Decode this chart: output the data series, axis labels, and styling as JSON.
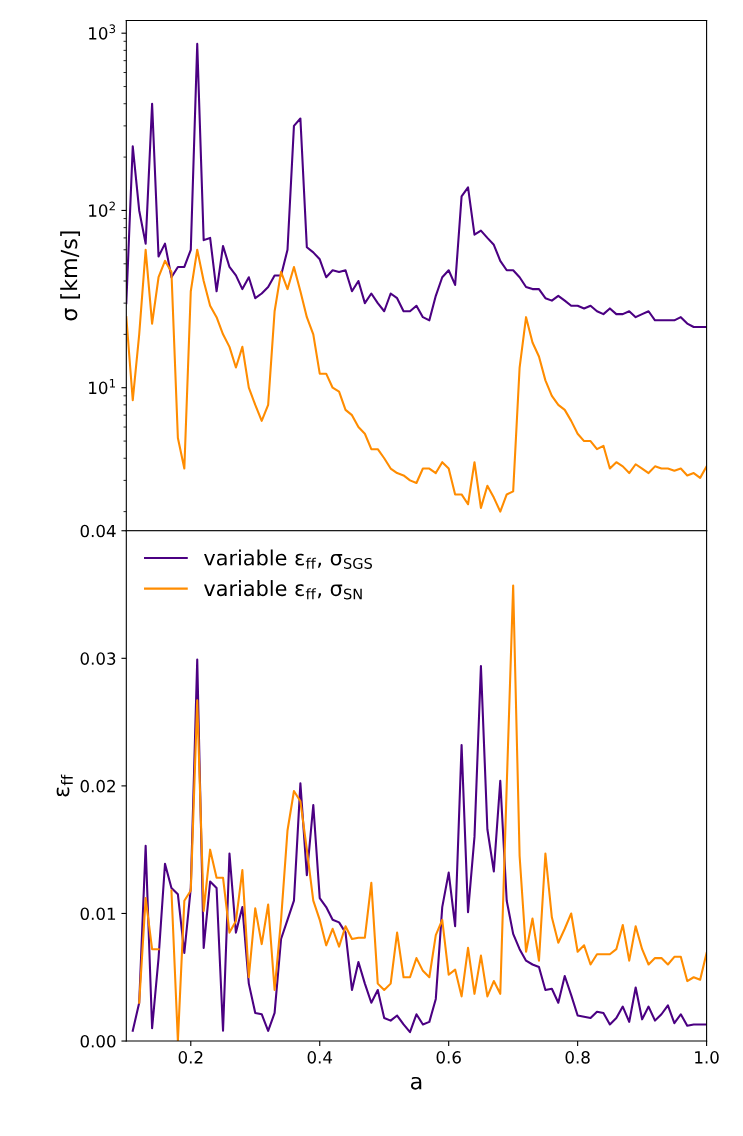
{
  "chart_data": [
    {
      "type": "line",
      "ylabel": "σ [km/s]",
      "log": "y",
      "ylim": [
        1.56,
        1180
      ],
      "yticks": [
        {
          "value": 10,
          "label": "10$^{1}$"
        },
        {
          "value": 100,
          "label": "10$^{2}$"
        },
        {
          "value": 1000,
          "label": "10$^{3}$"
        }
      ],
      "xlim": [
        0.1,
        1.0
      ],
      "tick_labels": "y",
      "grid": false,
      "legend": false,
      "marker": "none",
      "line_style": "solid",
      "series": [
        {
          "color": "#4b0082",
          "x": [
            0.1,
            0.11,
            0.12,
            0.13,
            0.14,
            0.15,
            0.16,
            0.17,
            0.18,
            0.19,
            0.2,
            0.21,
            0.22,
            0.23,
            0.24,
            0.25,
            0.26,
            0.27,
            0.28,
            0.29,
            0.3,
            0.31,
            0.32,
            0.33,
            0.34,
            0.35,
            0.36,
            0.37,
            0.38,
            0.39,
            0.4,
            0.41,
            0.42,
            0.43,
            0.44,
            0.45,
            0.46,
            0.47,
            0.48,
            0.49,
            0.5,
            0.51,
            0.52,
            0.53,
            0.54,
            0.55,
            0.56,
            0.57,
            0.58,
            0.59,
            0.6,
            0.61,
            0.62,
            0.63,
            0.64,
            0.65,
            0.66,
            0.67,
            0.68,
            0.69,
            0.7,
            0.71,
            0.72,
            0.73,
            0.74,
            0.75,
            0.76,
            0.77,
            0.78,
            0.79,
            0.8,
            0.81,
            0.82,
            0.83,
            0.84,
            0.85,
            0.86,
            0.87,
            0.88,
            0.89,
            0.9,
            0.91,
            0.92,
            0.93,
            0.94,
            0.95,
            0.96,
            0.97,
            0.98,
            0.99,
            1.0
          ],
          "values": [
            30,
            230,
            100,
            65,
            400,
            55,
            65,
            42,
            48,
            48,
            60,
            870,
            68,
            70,
            35,
            63,
            48,
            43,
            36,
            42,
            32,
            34,
            37,
            43,
            43,
            60,
            300,
            330,
            62,
            58,
            53,
            42,
            46,
            45,
            46,
            35,
            40,
            30,
            34,
            30,
            27,
            34,
            32,
            27,
            27,
            29,
            25,
            24,
            33,
            42,
            46,
            38,
            120,
            135,
            73,
            77,
            70,
            64,
            52,
            46,
            46,
            42,
            37,
            36,
            36,
            32,
            31,
            33,
            31,
            29,
            29,
            28,
            29,
            27,
            26,
            28,
            26,
            26,
            27,
            25,
            26,
            27,
            24,
            24,
            24,
            24,
            25,
            23,
            22,
            22,
            22
          ]
        },
        {
          "color": "#ff8c00",
          "x": [
            0.1,
            0.11,
            0.12,
            0.13,
            0.14,
            0.15,
            0.16,
            0.17,
            0.18,
            0.19,
            0.2,
            0.21,
            0.22,
            0.23,
            0.24,
            0.25,
            0.26,
            0.27,
            0.28,
            0.29,
            0.3,
            0.31,
            0.32,
            0.33,
            0.34,
            0.35,
            0.36,
            0.37,
            0.38,
            0.39,
            0.4,
            0.41,
            0.42,
            0.43,
            0.44,
            0.45,
            0.46,
            0.47,
            0.48,
            0.49,
            0.5,
            0.51,
            0.52,
            0.53,
            0.54,
            0.55,
            0.56,
            0.57,
            0.58,
            0.59,
            0.6,
            0.61,
            0.62,
            0.63,
            0.64,
            0.65,
            0.66,
            0.67,
            0.68,
            0.69,
            0.7,
            0.71,
            0.72,
            0.73,
            0.74,
            0.75,
            0.76,
            0.77,
            0.78,
            0.79,
            0.8,
            0.81,
            0.82,
            0.83,
            0.84,
            0.85,
            0.86,
            0.87,
            0.88,
            0.89,
            0.9,
            0.91,
            0.92,
            0.93,
            0.94,
            0.95,
            0.96,
            0.97,
            0.98,
            0.99,
            1.0
          ],
          "values": [
            25,
            8.5,
            20,
            60,
            23,
            42,
            52,
            45,
            5.2,
            3.5,
            35,
            60,
            40,
            29,
            25,
            20,
            17,
            13,
            17,
            10,
            8,
            6.5,
            8,
            27,
            45,
            36,
            48,
            35,
            25,
            20,
            12,
            12,
            10,
            9.5,
            7.5,
            7,
            6,
            5.5,
            4.5,
            4.5,
            4,
            3.5,
            3.3,
            3.2,
            3,
            2.9,
            3.5,
            3.5,
            3.3,
            3.8,
            3.5,
            2.5,
            2.5,
            2.2,
            3.8,
            2.1,
            2.8,
            2.4,
            2.0,
            2.5,
            2.6,
            13,
            25,
            18,
            15,
            11,
            9,
            8,
            7.5,
            6.5,
            5.5,
            5,
            5,
            4.5,
            4.7,
            3.5,
            3.8,
            3.6,
            3.3,
            3.7,
            3.5,
            3.3,
            3.6,
            3.5,
            3.5,
            3.4,
            3.5,
            3.2,
            3.3,
            3.1,
            3.6
          ]
        }
      ]
    },
    {
      "type": "line",
      "xlabel": "a",
      "ylabel": "ε$_{ff}$",
      "ylim": [
        0,
        0.04
      ],
      "yticks": [
        {
          "value": 0,
          "label": "0.00"
        },
        {
          "value": 0.01,
          "label": "0.01"
        },
        {
          "value": 0.02,
          "label": "0.02"
        },
        {
          "value": 0.03,
          "label": "0.03"
        },
        {
          "value": 0.04,
          "label": "0.04"
        }
      ],
      "xlim": [
        0.1,
        1.0
      ],
      "xticks": [
        {
          "value": 0.2,
          "label": "0.2"
        },
        {
          "value": 0.4,
          "label": "0.4"
        },
        {
          "value": 0.6,
          "label": "0.6"
        },
        {
          "value": 0.8,
          "label": "0.8"
        },
        {
          "value": 1.0,
          "label": "1.0"
        }
      ],
      "grid": false,
      "legend": "top left",
      "marker": "none",
      "line_style": "solid",
      "series": [
        {
          "name": "variable ε$_{ff}$, σ$_{SGS}$",
          "color": "#4b0082",
          "x": [
            0.11,
            0.12,
            0.13,
            0.14,
            0.15,
            0.16,
            0.17,
            0.18,
            0.19,
            0.2,
            0.21,
            0.22,
            0.23,
            0.24,
            0.25,
            0.26,
            0.27,
            0.28,
            0.29,
            0.3,
            0.31,
            0.32,
            0.33,
            0.34,
            0.35,
            0.36,
            0.37,
            0.38,
            0.39,
            0.4,
            0.41,
            0.42,
            0.43,
            0.44,
            0.45,
            0.46,
            0.47,
            0.48,
            0.49,
            0.5,
            0.51,
            0.52,
            0.53,
            0.54,
            0.55,
            0.56,
            0.57,
            0.58,
            0.59,
            0.6,
            0.61,
            0.62,
            0.63,
            0.64,
            0.65,
            0.66,
            0.67,
            0.68,
            0.69,
            0.7,
            0.71,
            0.72,
            0.73,
            0.74,
            0.75,
            0.76,
            0.77,
            0.78,
            0.79,
            0.8,
            0.81,
            0.82,
            0.83,
            0.84,
            0.85,
            0.86,
            0.87,
            0.88,
            0.89,
            0.9,
            0.91,
            0.92,
            0.93,
            0.94,
            0.95,
            0.96,
            0.97,
            0.98,
            0.99,
            1.0
          ],
          "values": [
            0.0008,
            0.003,
            0.0153,
            0.001,
            0.0065,
            0.0139,
            0.012,
            0.0115,
            0.0069,
            0.012,
            0.0299,
            0.0073,
            0.0125,
            0.012,
            0.0008,
            0.0147,
            0.0085,
            0.0105,
            0.0045,
            0.0022,
            0.0021,
            0.0008,
            0.0022,
            0.008,
            0.0095,
            0.011,
            0.0202,
            0.013,
            0.0185,
            0.0112,
            0.0105,
            0.0095,
            0.0093,
            0.0085,
            0.004,
            0.0062,
            0.0045,
            0.003,
            0.004,
            0.0018,
            0.0016,
            0.002,
            0.0013,
            0.0007,
            0.0021,
            0.0013,
            0.0015,
            0.0033,
            0.0105,
            0.0132,
            0.009,
            0.0232,
            0.0101,
            0.016,
            0.0294,
            0.0166,
            0.0133,
            0.0204,
            0.011,
            0.0084,
            0.0072,
            0.0063,
            0.006,
            0.0058,
            0.004,
            0.0041,
            0.003,
            0.0051,
            0.0036,
            0.002,
            0.0019,
            0.0018,
            0.0023,
            0.0022,
            0.0013,
            0.0018,
            0.0027,
            0.0015,
            0.0042,
            0.0017,
            0.0027,
            0.0016,
            0.0021,
            0.0028,
            0.0014,
            0.0021,
            0.0012,
            0.0013,
            0.0013,
            0.0013
          ]
        },
        {
          "name": "variable ε$_{ff}$, σ$_{SN}$",
          "color": "#ff8c00",
          "x": [
            0.12,
            0.13,
            0.14,
            0.15,
            0.16,
            0.17,
            0.18,
            0.19,
            0.2,
            0.21,
            0.22,
            0.23,
            0.24,
            0.25,
            0.26,
            0.27,
            0.28,
            0.29,
            0.3,
            0.31,
            0.32,
            0.33,
            0.34,
            0.35,
            0.36,
            0.37,
            0.38,
            0.39,
            0.4,
            0.41,
            0.42,
            0.43,
            0.44,
            0.45,
            0.46,
            0.47,
            0.48,
            0.49,
            0.5,
            0.51,
            0.52,
            0.53,
            0.54,
            0.55,
            0.56,
            0.57,
            0.58,
            0.59,
            0.6,
            0.61,
            0.62,
            0.63,
            0.64,
            0.65,
            0.66,
            0.67,
            0.68,
            0.69,
            0.7,
            0.71,
            0.72,
            0.73,
            0.74,
            0.75,
            0.76,
            0.77,
            0.78,
            0.79,
            0.8,
            0.81,
            0.82,
            0.83,
            0.84,
            0.85,
            0.86,
            0.87,
            0.88,
            0.89,
            0.9,
            0.91,
            0.92,
            0.93,
            0.94,
            0.95,
            0.96,
            0.97,
            0.98,
            0.99,
            1.0
          ],
          "values": [
            0.003,
            0.0112,
            0.0072,
            0.0072,
            null,
            0.0118,
            0.0,
            0.011,
            0.0118,
            0.0267,
            0.0102,
            0.015,
            0.0128,
            0.0128,
            0.0085,
            0.0094,
            0.0134,
            0.005,
            0.0104,
            0.0076,
            0.0107,
            0.004,
            0.0095,
            0.0165,
            0.0196,
            0.0188,
            0.015,
            0.011,
            0.0095,
            0.0075,
            0.0088,
            0.0074,
            0.009,
            0.008,
            0.0081,
            0.0081,
            0.0124,
            0.0045,
            0.004,
            0.0045,
            0.0085,
            0.005,
            0.005,
            0.0065,
            0.0055,
            0.005,
            0.0083,
            0.0095,
            0.0052,
            0.0056,
            0.0035,
            0.0073,
            0.0037,
            0.0067,
            0.0035,
            0.0047,
            0.0037,
            0.02,
            0.0357,
            0.0145,
            0.007,
            0.0096,
            0.0063,
            0.0147,
            0.0097,
            0.0077,
            0.0088,
            0.01,
            0.007,
            0.0075,
            0.006,
            0.0068,
            0.0068,
            0.0068,
            0.0072,
            0.0091,
            0.0063,
            0.009,
            0.0072,
            0.006,
            0.0065,
            0.0065,
            0.006,
            0.0066,
            0.0066,
            0.0047,
            0.005,
            0.0048,
            0.0069
          ]
        }
      ]
    }
  ]
}
